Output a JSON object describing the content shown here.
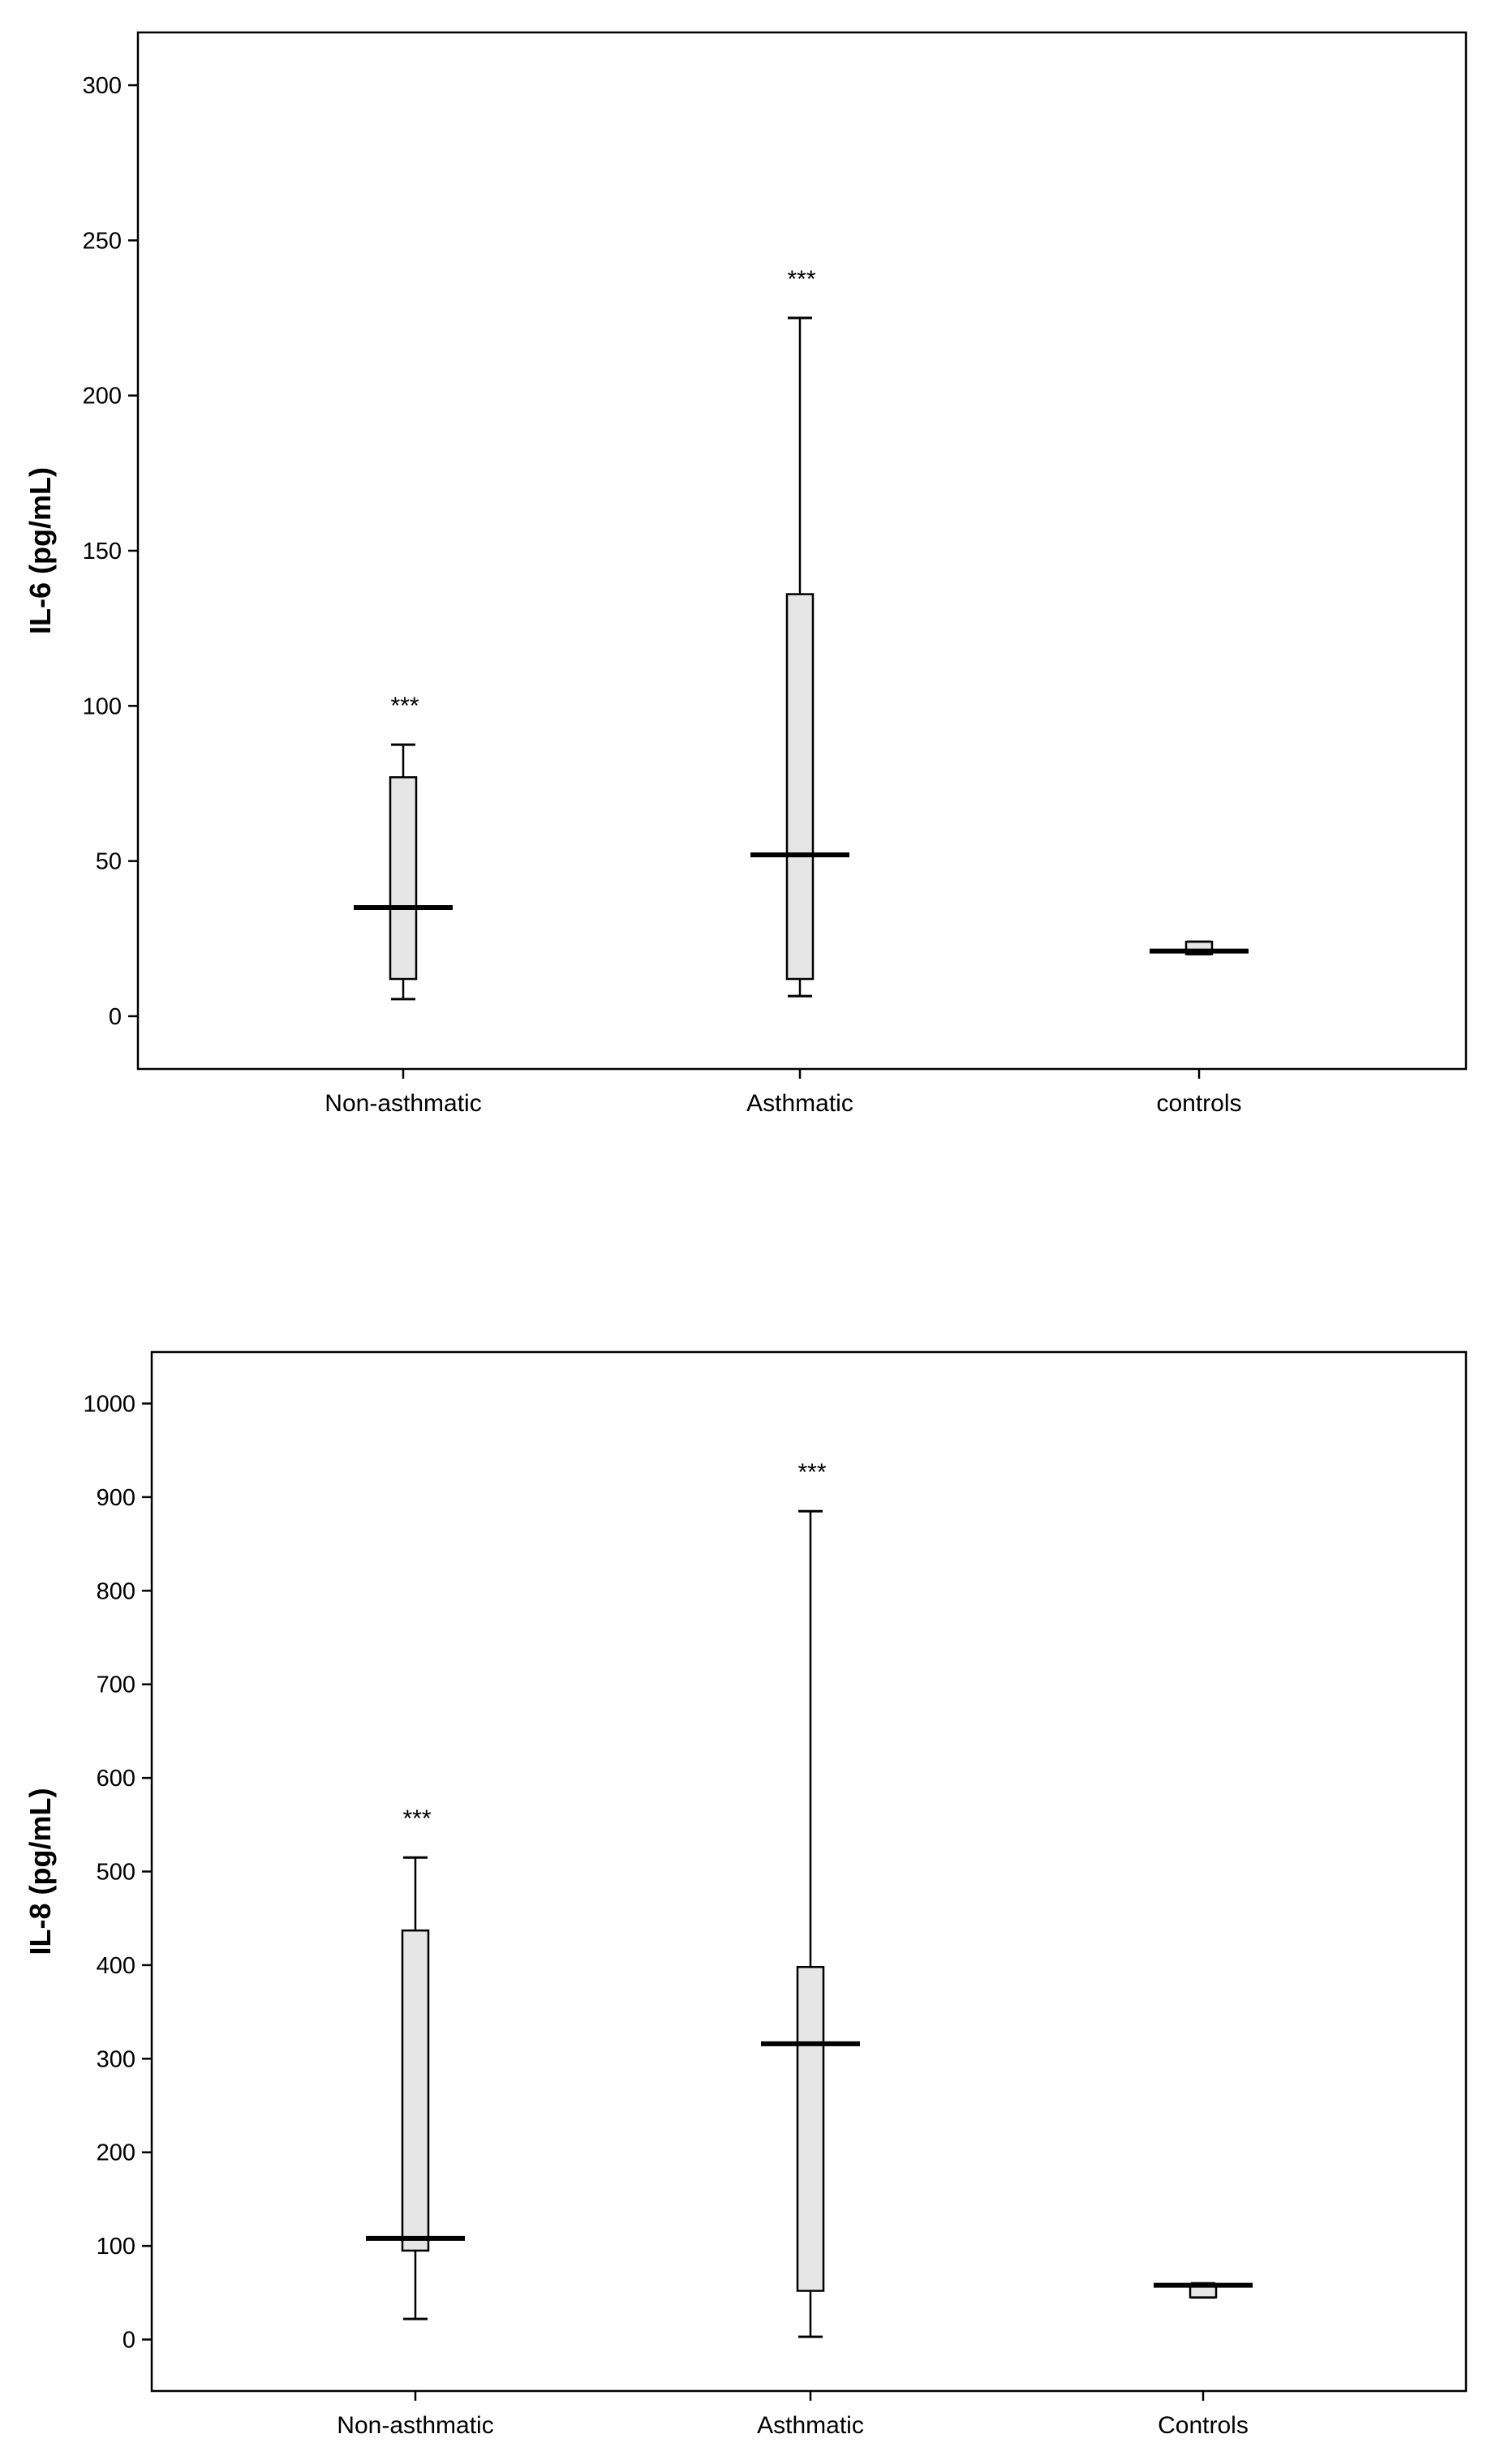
{
  "chart_data": [
    {
      "type": "box",
      "ylabel": "IL-6 (pg/mL)",
      "xlabel": "",
      "ylim": [
        -17,
        317
      ],
      "yticks": [
        0,
        50,
        100,
        150,
        200,
        250,
        300
      ],
      "grid": false,
      "categories": [
        "Non-asthmatic",
        "Asthmatic",
        "controls"
      ],
      "boxes": [
        {
          "category": "Non-asthmatic",
          "min": 5.5,
          "q1": 12,
          "median": 35,
          "q3": 77,
          "max": 87.5,
          "annotation": "***"
        },
        {
          "category": "Asthmatic",
          "min": 6.5,
          "q1": 12,
          "median": 52,
          "q3": 136,
          "max": 225,
          "annotation": "***"
        },
        {
          "category": "controls",
          "min": 20,
          "q1": 20,
          "median": 21,
          "q3": 24,
          "max": 24,
          "annotation": ""
        }
      ]
    },
    {
      "type": "box",
      "ylabel": "IL-8 (pg/mL)",
      "xlabel": "",
      "ylim": [
        -55,
        1055
      ],
      "yticks": [
        0,
        100,
        200,
        300,
        400,
        500,
        600,
        700,
        800,
        900,
        1000
      ],
      "grid": false,
      "categories": [
        "Non-asthmatic",
        "Asthmatic",
        "Controls"
      ],
      "boxes": [
        {
          "category": "Non-asthmatic",
          "min": 22,
          "q1": 95,
          "median": 108,
          "q3": 437,
          "max": 515,
          "annotation": "***"
        },
        {
          "category": "Asthmatic",
          "min": 3,
          "q1": 52,
          "median": 316,
          "q3": 398,
          "max": 885,
          "annotation": "***"
        },
        {
          "category": "Controls",
          "min": 45,
          "q1": 45,
          "median": 58,
          "q3": 58,
          "max": 60,
          "annotation": ""
        }
      ]
    }
  ]
}
